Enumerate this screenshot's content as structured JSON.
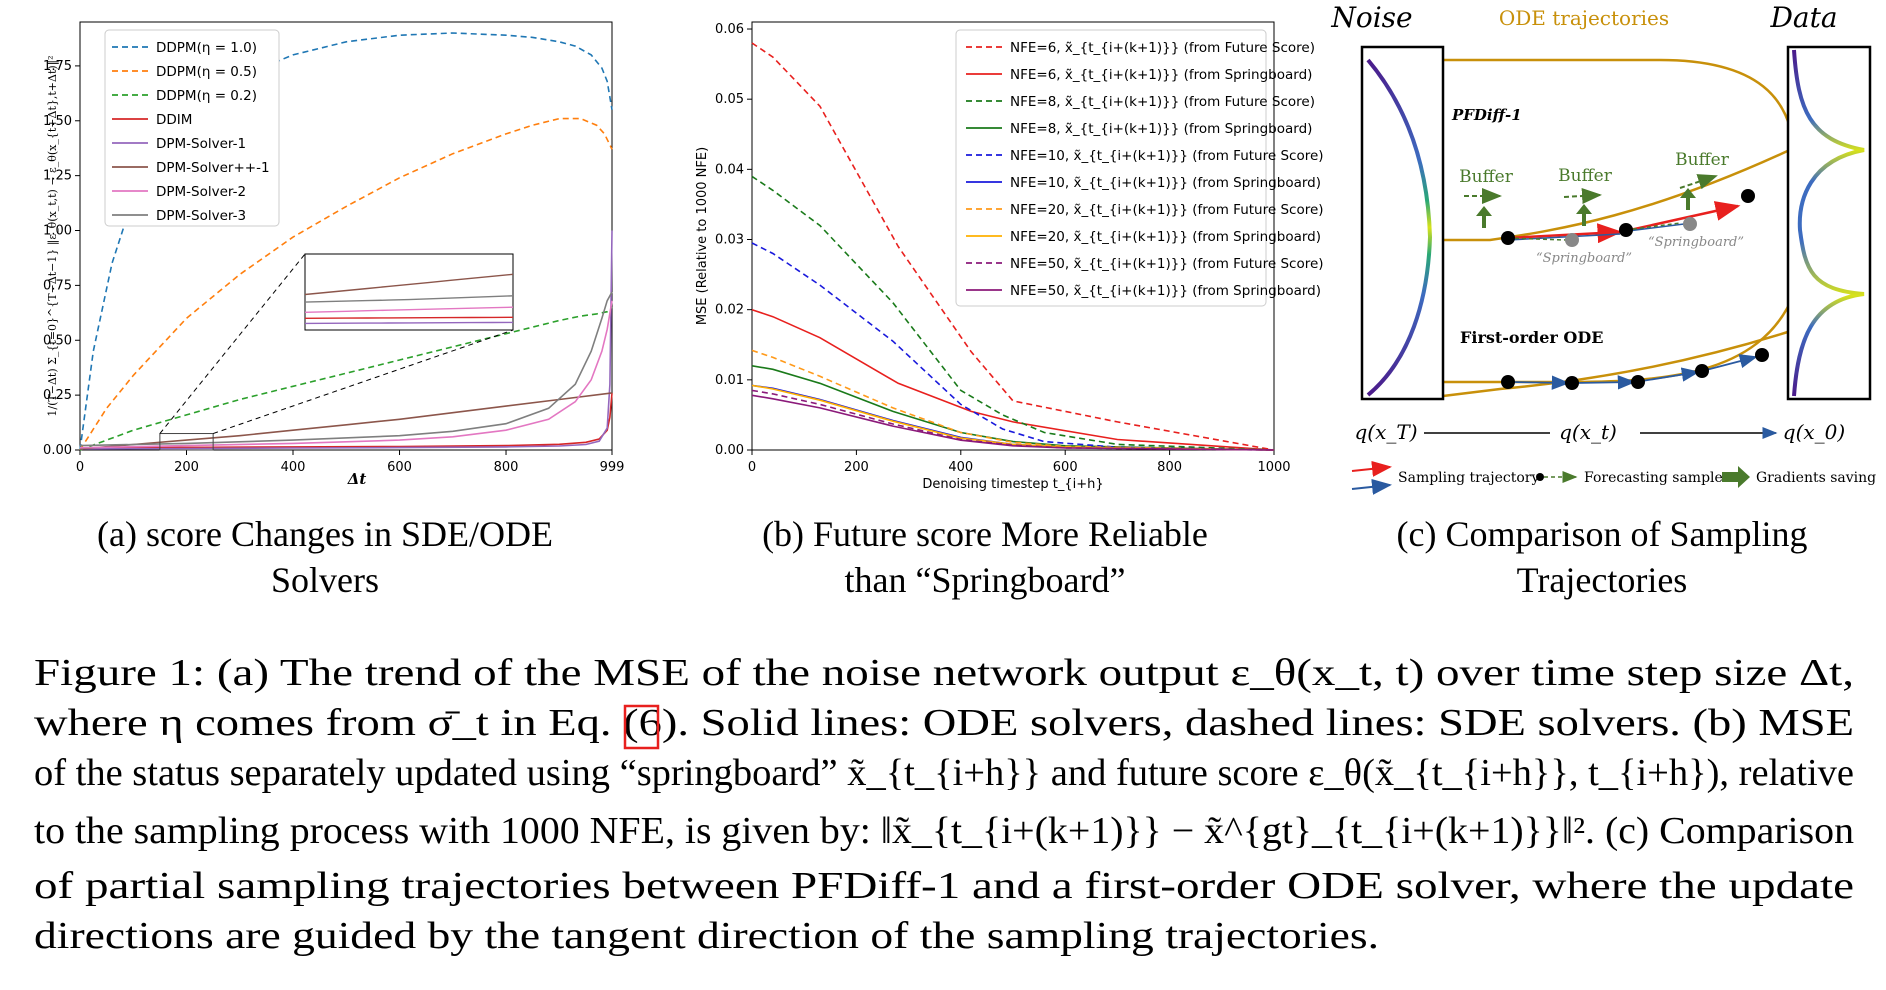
{
  "panel_a": {
    "caption_lines": [
      "(a) score Changes in SDE/ODE",
      "Solvers"
    ],
    "ylabel": "1/(T−Δt) Σ_{t=0}^{T−Δt−1} ‖ε_θ(x_t,t) − ε_θ(x_{t+Δt},t+Δt)‖²",
    "xlabel": "Δt",
    "xticks": [
      "0",
      "200",
      "400",
      "600",
      "800",
      "999"
    ],
    "yticks": [
      "0.00",
      "0.25",
      "0.50",
      "0.75",
      "1.00",
      "1.25",
      "1.50",
      "1.75"
    ]
  },
  "panel_b": {
    "caption_lines": [
      "(b) Future score More Reliable",
      "than “Springboard”"
    ],
    "ylabel": "MSE (Relative to 1000 NFE)",
    "xlabel": "Denoising timestep t_{i+h}",
    "xticks": [
      "0",
      "200",
      "400",
      "600",
      "800",
      "1000"
    ],
    "yticks": [
      "0.00",
      "0.01",
      "0.02",
      "0.03",
      "0.04",
      "0.05",
      "0.06"
    ]
  },
  "panel_c": {
    "caption_lines": [
      "(c) Comparison of Sampling",
      "Trajectories"
    ],
    "noise_label": "Noise",
    "data_label": "Data",
    "ode_label": "ODE trajectories",
    "pfdiff_label": "PFDiff-1",
    "first_order_label": "First-order ODE",
    "buffer_labels": [
      "Buffer",
      "Buffer",
      "Buffer"
    ],
    "springboard_labels": [
      "“Springboard”",
      "“Springboard”"
    ],
    "q_labels": [
      "q(x_T)",
      "q(x_t)",
      "q(x_0)"
    ],
    "legend": [
      "Sampling trajectory",
      "Forecasting sample",
      "Gradients saving"
    ]
  },
  "caption": {
    "lines": [
      "Figure 1: (a) The trend of the MSE of the noise network output ε_θ(x_t, t) over time step size Δt,",
      "where η comes from σ̄_t in Eq. (6). Solid lines: ODE solvers, dashed lines: SDE solvers. (b) MSE",
      "of the status separately updated using “springboard” x̃_{t_{i+h}} and future score ε_θ(x̃_{t_{i+h}}, t_{i+h}), relative",
      "to the sampling process with 1000 NFE, is given by: ‖x̃_{t_{i+(k+1)}} − x̃^{gt}_{t_{i+(k+1)}}‖². (c) Comparison",
      "of partial sampling trajectories between PFDiff-1 and a first-order ODE solver, where the update",
      "directions are guided by the tangent direction of the sampling trajectories."
    ]
  },
  "chart_data": [
    {
      "type": "line",
      "xlim": [
        0,
        999
      ],
      "ylim": [
        0,
        1.95
      ],
      "grid": false,
      "legend_placement": "top-left",
      "inset_zoom_box": {
        "x": [
          150,
          250
        ],
        "y": [
          0,
          0.075
        ]
      },
      "series": [
        {
          "name": "DDPM(η = 1.0)",
          "color": "#1f77b4",
          "dash": true,
          "x": [
            0,
            25,
            60,
            100,
            150,
            200,
            300,
            400,
            500,
            600,
            700,
            800,
            850,
            900,
            930,
            960,
            980,
            990,
            999
          ],
          "y": [
            0,
            0.45,
            0.85,
            1.15,
            1.38,
            1.52,
            1.7,
            1.8,
            1.86,
            1.89,
            1.9,
            1.89,
            1.88,
            1.86,
            1.84,
            1.8,
            1.74,
            1.68,
            1.55
          ]
        },
        {
          "name": "DDPM(η = 0.5)",
          "color": "#ff7f0e",
          "dash": true,
          "x": [
            0,
            50,
            100,
            200,
            300,
            400,
            500,
            600,
            700,
            800,
            850,
            900,
            940,
            970,
            985,
            999
          ],
          "y": [
            0,
            0.19,
            0.34,
            0.6,
            0.8,
            0.97,
            1.11,
            1.24,
            1.35,
            1.44,
            1.48,
            1.51,
            1.51,
            1.48,
            1.44,
            1.37
          ]
        },
        {
          "name": "DDPM(η = 0.2)",
          "color": "#2ca02c",
          "dash": true,
          "x": [
            0,
            100,
            200,
            300,
            400,
            500,
            600,
            700,
            800,
            850,
            900,
            940,
            970,
            990,
            999
          ],
          "y": [
            0,
            0.09,
            0.16,
            0.23,
            0.29,
            0.35,
            0.41,
            0.47,
            0.53,
            0.56,
            0.59,
            0.61,
            0.62,
            0.63,
            0.65
          ]
        },
        {
          "name": "DDIM",
          "color": "#d62728",
          "dash": false,
          "x": [
            0,
            200,
            400,
            600,
            800,
            900,
            950,
            975,
            990,
            995,
            999
          ],
          "y": [
            0.01,
            0.012,
            0.014,
            0.016,
            0.02,
            0.026,
            0.035,
            0.05,
            0.09,
            0.15,
            0.26
          ]
        },
        {
          "name": "DPM-Solver-1",
          "color": "#9467bd",
          "dash": false,
          "x": [
            0,
            200,
            400,
            600,
            800,
            900,
            950,
            975,
            990,
            995,
            999
          ],
          "y": [
            0.005,
            0.007,
            0.009,
            0.011,
            0.014,
            0.018,
            0.025,
            0.04,
            0.1,
            0.3,
            1.0
          ]
        },
        {
          "name": "DPM-Solver++-1",
          "color": "#8c564b",
          "dash": false,
          "x": [
            0,
            100,
            200,
            300,
            400,
            500,
            600,
            700,
            800,
            900,
            999
          ],
          "y": [
            0.005,
            0.025,
            0.045,
            0.065,
            0.09,
            0.115,
            0.14,
            0.17,
            0.2,
            0.23,
            0.26
          ]
        },
        {
          "name": "DPM-Solver-2",
          "color": "#e377c2",
          "dash": false,
          "x": [
            0,
            200,
            400,
            600,
            700,
            800,
            880,
            930,
            960,
            980,
            990,
            999
          ],
          "y": [
            0.01,
            0.02,
            0.03,
            0.045,
            0.06,
            0.09,
            0.14,
            0.22,
            0.32,
            0.45,
            0.55,
            0.68
          ]
        },
        {
          "name": "DPM-Solver-3",
          "color": "#7f7f7f",
          "dash": false,
          "x": [
            0,
            200,
            400,
            600,
            700,
            800,
            880,
            930,
            960,
            980,
            990,
            999
          ],
          "y": [
            0.02,
            0.03,
            0.045,
            0.065,
            0.085,
            0.12,
            0.19,
            0.3,
            0.45,
            0.6,
            0.68,
            0.72
          ]
        }
      ]
    },
    {
      "type": "line",
      "xlim": [
        0,
        1000
      ],
      "ylim": [
        0,
        0.061
      ],
      "grid": false,
      "legend_placement": "top-right",
      "series": [
        {
          "name": "NFE=6, x̃_{t_{i+(k+1)}} (from Future Score)",
          "color": "#e8201e",
          "dash": true,
          "x": [
            0,
            40,
            130,
            280,
            420,
            500,
            700,
            1000
          ],
          "y": [
            0.058,
            0.056,
            0.049,
            0.029,
            0.014,
            0.007,
            0.004,
            0
          ]
        },
        {
          "name": "NFE=6, x̃_{t_{i+(k+1)}} (from Springboard)",
          "color": "#e8201e",
          "dash": false,
          "x": [
            0,
            40,
            130,
            280,
            420,
            500,
            700,
            1000
          ],
          "y": [
            0.02,
            0.019,
            0.016,
            0.0095,
            0.0055,
            0.004,
            0.0015,
            0
          ]
        },
        {
          "name": "NFE=8, x̃_{t_{i+(k+1)}} (from Future Score)",
          "color": "#1a7a1a",
          "dash": true,
          "x": [
            0,
            40,
            130,
            270,
            400,
            480,
            560,
            700,
            1000
          ],
          "y": [
            0.039,
            0.037,
            0.032,
            0.021,
            0.0085,
            0.005,
            0.0025,
            0.0008,
            0
          ]
        },
        {
          "name": "NFE=8, x̃_{t_{i+(k+1)}} (from Springboard)",
          "color": "#1a7a1a",
          "dash": false,
          "x": [
            0,
            40,
            130,
            270,
            400,
            500,
            600,
            1000
          ],
          "y": [
            0.012,
            0.0115,
            0.0095,
            0.0055,
            0.0025,
            0.0012,
            0.0006,
            0
          ]
        },
        {
          "name": "NFE=10, x̃_{t_{i+(k+1)}} (from Future Score)",
          "color": "#1a1adc",
          "dash": true,
          "x": [
            0,
            40,
            130,
            270,
            400,
            480,
            560,
            700,
            1000
          ],
          "y": [
            0.0295,
            0.028,
            0.0235,
            0.0155,
            0.0065,
            0.003,
            0.0012,
            0.0004,
            0
          ]
        },
        {
          "name": "NFE=10, x̃_{t_{i+(k+1)}} (from Springboard)",
          "color": "#1a1adc",
          "dash": false,
          "x": [
            0,
            40,
            130,
            270,
            400,
            500,
            600,
            1000
          ],
          "y": [
            0.0092,
            0.0088,
            0.0072,
            0.0042,
            0.0018,
            0.0008,
            0.0004,
            0
          ]
        },
        {
          "name": "NFE=20, x̃_{t_{i+(k+1)}} (from Future Score)",
          "color": "#ff9a1a",
          "dash": true,
          "x": [
            0,
            40,
            130,
            270,
            400,
            500,
            600,
            1000
          ],
          "y": [
            0.0142,
            0.0132,
            0.0105,
            0.006,
            0.0025,
            0.0011,
            0.0005,
            0
          ]
        },
        {
          "name": "NFE=20, x̃_{t_{i+(k+1)}} (from Springboard)",
          "color": "#ffb000",
          "dash": false,
          "x": [
            0,
            40,
            130,
            270,
            400,
            500,
            600,
            1000
          ],
          "y": [
            0.0092,
            0.0087,
            0.0071,
            0.0041,
            0.0017,
            0.0008,
            0.0004,
            0
          ]
        },
        {
          "name": "NFE=50, x̃_{t_{i+(k+1)}} (from Future Score)",
          "color": "#8b1a7a",
          "dash": true,
          "x": [
            0,
            40,
            130,
            270,
            400,
            500,
            600,
            1000
          ],
          "y": [
            0.0085,
            0.008,
            0.0065,
            0.0037,
            0.0015,
            0.0007,
            0.0003,
            0
          ]
        },
        {
          "name": "NFE=50, x̃_{t_{i+(k+1)}} (from Springboard)",
          "color": "#8b1a7a",
          "dash": false,
          "x": [
            0,
            40,
            130,
            270,
            400,
            500,
            600,
            1000
          ],
          "y": [
            0.0078,
            0.0073,
            0.006,
            0.0034,
            0.0014,
            0.0006,
            0.0003,
            0
          ]
        }
      ]
    }
  ]
}
